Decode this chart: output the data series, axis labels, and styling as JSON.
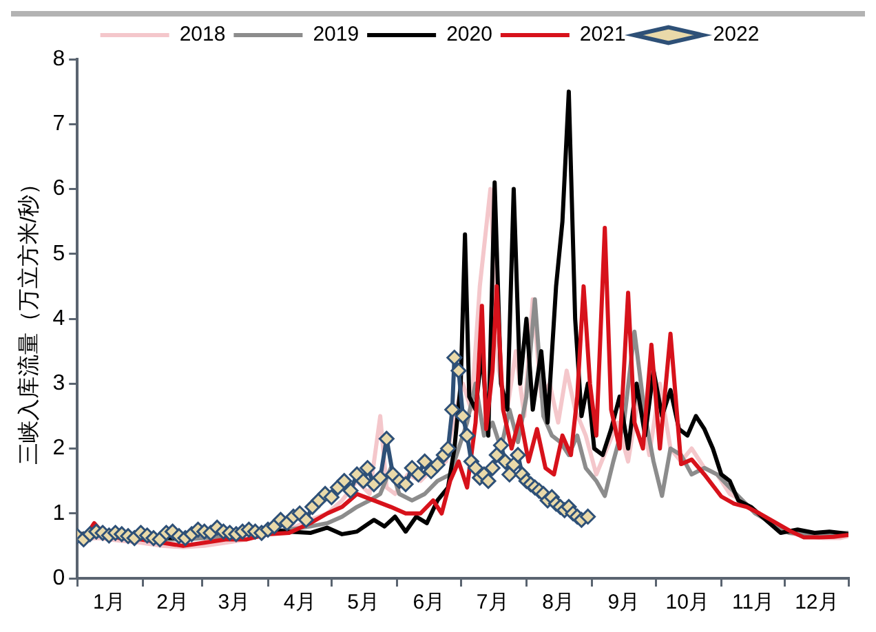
{
  "chart_data": {
    "type": "line",
    "ylabel": "三峡入库流量（万立方米/秒）",
    "xlim": [
      "--01-01",
      "--12-31"
    ],
    "ylim": [
      0,
      8
    ],
    "yticks": [
      0,
      1,
      2,
      3,
      4,
      5,
      6,
      7,
      8
    ],
    "xticks": [
      {
        "value": "--01-01",
        "label": null
      },
      {
        "value": "--01-16",
        "label": "1月"
      },
      {
        "value": "--02-01",
        "label": null
      },
      {
        "value": "--02-15",
        "label": "2月"
      },
      {
        "value": "--03-01",
        "label": null
      },
      {
        "value": "--03-16",
        "label": "3月"
      },
      {
        "value": "--04-01",
        "label": null
      },
      {
        "value": "--04-16",
        "label": "4月"
      },
      {
        "value": "--05-01",
        "label": null
      },
      {
        "value": "--05-16",
        "label": "5月"
      },
      {
        "value": "--06-01",
        "label": null
      },
      {
        "value": "--06-16",
        "label": "6月"
      },
      {
        "value": "--07-01",
        "label": null
      },
      {
        "value": "--07-16",
        "label": "7月"
      },
      {
        "value": "--08-01",
        "label": null
      },
      {
        "value": "--08-16",
        "label": "8月"
      },
      {
        "value": "--09-01",
        "label": null
      },
      {
        "value": "--09-16",
        "label": "9月"
      },
      {
        "value": "--10-01",
        "label": null
      },
      {
        "value": "--10-16",
        "label": "10月"
      },
      {
        "value": "--11-01",
        "label": null
      },
      {
        "value": "--11-16",
        "label": "11月"
      },
      {
        "value": "--12-01",
        "label": null
      },
      {
        "value": "--12-16",
        "label": "12月"
      },
      {
        "value": "--12-31",
        "label": null
      }
    ],
    "grid": false,
    "legend": "top",
    "marker": "none",
    "line_style": "solid",
    "series": [
      {
        "name": "2018",
        "color": "#f4c7cb",
        "x": [
          "--01-01",
          "--01-11",
          "--01-21",
          "--01-31",
          "--02-10",
          "--02-20",
          "--03-02",
          "--03-12",
          "--03-22",
          "--04-01",
          "--04-11",
          "--04-21",
          "--04-29",
          "--05-06",
          "--05-13",
          "--05-19",
          "--05-24",
          "--05-27",
          "--05-31",
          "--06-06",
          "--06-12",
          "--06-18",
          "--06-24",
          "--06-28",
          "--07-02",
          "--07-06",
          "--07-10",
          "--07-15",
          "--07-19",
          "--07-23",
          "--07-27",
          "--07-31",
          "--08-04",
          "--08-08",
          "--08-12",
          "--08-16",
          "--08-20",
          "--08-24",
          "--08-29",
          "--09-03",
          "--09-08",
          "--09-13",
          "--09-18",
          "--09-23",
          "--09-28",
          "--10-03",
          "--10-08",
          "--10-13",
          "--10-18",
          "--10-24",
          "--10-30",
          "--11-05",
          "--11-11",
          "--11-17",
          "--11-25",
          "--12-03",
          "--12-11",
          "--12-19",
          "--12-27",
          "--12-31"
        ],
        "values": [
          0.6,
          0.62,
          0.58,
          0.55,
          0.5,
          0.48,
          0.5,
          0.55,
          0.6,
          0.7,
          0.75,
          0.9,
          1.0,
          1.2,
          1.5,
          1.3,
          2.5,
          1.4,
          1.3,
          1.6,
          1.5,
          1.7,
          1.8,
          2.5,
          3.0,
          2.6,
          4.5,
          6.0,
          3.2,
          2.6,
          3.5,
          2.5,
          4.3,
          2.8,
          3.0,
          2.4,
          3.2,
          2.6,
          2.2,
          1.6,
          2.0,
          2.4,
          1.8,
          2.8,
          1.9,
          3.0,
          2.0,
          1.8,
          2.0,
          1.7,
          1.6,
          1.3,
          1.2,
          1.0,
          0.85,
          0.7,
          0.65,
          0.62,
          0.62,
          0.65
        ]
      },
      {
        "name": "2019",
        "color": "#8c8c8c",
        "x": [
          "--01-01",
          "--01-11",
          "--01-21",
          "--01-31",
          "--02-10",
          "--02-20",
          "--03-02",
          "--03-12",
          "--03-22",
          "--04-01",
          "--04-11",
          "--04-21",
          "--04-29",
          "--05-06",
          "--05-13",
          "--05-19",
          "--05-24",
          "--05-29",
          "--06-02",
          "--06-08",
          "--06-14",
          "--06-20",
          "--06-26",
          "--06-30",
          "--07-04",
          "--07-08",
          "--07-12",
          "--07-16",
          "--07-20",
          "--07-24",
          "--07-28",
          "--08-01",
          "--08-05",
          "--08-09",
          "--08-13",
          "--08-17",
          "--08-21",
          "--08-25",
          "--08-29",
          "--09-03",
          "--09-07",
          "--09-11",
          "--09-16",
          "--09-21",
          "--09-26",
          "--09-30",
          "--10-04",
          "--10-08",
          "--10-13",
          "--10-18",
          "--10-24",
          "--10-30",
          "--11-05",
          "--11-11",
          "--11-17",
          "--11-25",
          "--12-03",
          "--12-11",
          "--12-19",
          "--12-27",
          "--12-31"
        ],
        "values": [
          0.65,
          0.66,
          0.64,
          0.62,
          0.6,
          0.6,
          0.62,
          0.65,
          0.68,
          0.72,
          0.75,
          0.8,
          0.85,
          0.95,
          1.1,
          1.2,
          1.3,
          1.7,
          1.3,
          1.2,
          1.3,
          1.5,
          1.6,
          2.0,
          2.4,
          3.0,
          2.2,
          2.4,
          2.0,
          2.6,
          2.1,
          2.8,
          4.3,
          2.5,
          2.2,
          2.1,
          1.9,
          2.2,
          1.7,
          1.5,
          1.27,
          1.8,
          2.4,
          3.8,
          2.5,
          1.8,
          1.27,
          2.0,
          1.9,
          1.6,
          1.7,
          1.6,
          1.4,
          1.2,
          1.0,
          0.85,
          0.7,
          0.68,
          0.68,
          0.7,
          0.7
        ]
      },
      {
        "name": "2020",
        "color": "#000000",
        "x": [
          "--01-01",
          "--01-11",
          "--01-21",
          "--01-31",
          "--02-15",
          "--03-02",
          "--03-17",
          "--04-01",
          "--04-11",
          "--04-21",
          "--04-29",
          "--05-06",
          "--05-13",
          "--05-21",
          "--05-26",
          "--05-31",
          "--06-05",
          "--06-10",
          "--06-15",
          "--06-20",
          "--06-25",
          "--06-28",
          "--07-01",
          "--07-03",
          "--07-05",
          "--07-08",
          "--07-11",
          "--07-14",
          "--07-17",
          "--07-20",
          "--07-23",
          "--07-26",
          "--07-29",
          "--08-01",
          "--08-04",
          "--08-08",
          "--08-11",
          "--08-15",
          "--08-18",
          "--08-21",
          "--08-24",
          "--08-27",
          "--08-30",
          "--09-02",
          "--09-06",
          "--09-10",
          "--09-14",
          "--09-18",
          "--09-22",
          "--09-26",
          "--09-30",
          "--10-04",
          "--10-08",
          "--10-12",
          "--10-16",
          "--10-20",
          "--10-24",
          "--10-28",
          "--11-01",
          "--11-05",
          "--11-09",
          "--11-15",
          "--11-22",
          "--11-29",
          "--12-07",
          "--12-15",
          "--12-22",
          "--12-27",
          "--12-31"
        ],
        "values": [
          0.68,
          0.7,
          0.68,
          0.65,
          0.62,
          0.7,
          0.72,
          0.75,
          0.72,
          0.7,
          0.78,
          0.68,
          0.72,
          0.9,
          0.8,
          0.95,
          0.72,
          0.95,
          0.85,
          1.2,
          1.4,
          2.0,
          3.0,
          5.3,
          2.8,
          2.6,
          3.5,
          2.2,
          6.1,
          3.0,
          2.6,
          6.0,
          3.0,
          4.0,
          2.6,
          3.5,
          2.4,
          4.5,
          5.5,
          7.5,
          4.0,
          2.5,
          3.0,
          2.0,
          1.9,
          2.3,
          2.8,
          2.0,
          3.0,
          2.2,
          3.2,
          2.5,
          2.9,
          2.3,
          2.2,
          2.5,
          2.3,
          2.0,
          1.6,
          1.5,
          1.2,
          1.1,
          0.9,
          0.7,
          0.75,
          0.7,
          0.72,
          0.7,
          0.68
        ]
      },
      {
        "name": "2021",
        "color": "#d7121b",
        "x": [
          "--01-01",
          "--01-06",
          "--01-09",
          "--01-13",
          "--01-21",
          "--01-31",
          "--02-10",
          "--02-20",
          "--03-02",
          "--03-12",
          "--03-22",
          "--04-01",
          "--04-11",
          "--04-21",
          "--04-29",
          "--05-06",
          "--05-13",
          "--05-21",
          "--05-29",
          "--06-05",
          "--06-12",
          "--06-18",
          "--06-22",
          "--06-26",
          "--06-30",
          "--07-04",
          "--07-08",
          "--07-11",
          "--07-13",
          "--07-16",
          "--07-18",
          "--07-21",
          "--07-25",
          "--07-29",
          "--08-02",
          "--08-06",
          "--08-10",
          "--08-14",
          "--08-18",
          "--08-22",
          "--08-25",
          "--08-28",
          "--08-31",
          "--09-03",
          "--09-07",
          "--09-10",
          "--09-14",
          "--09-18",
          "--09-21",
          "--09-25",
          "--09-29",
          "--10-03",
          "--10-08",
          "--10-13",
          "--10-18",
          "--10-24",
          "--11-01",
          "--11-07",
          "--11-13",
          "--11-19",
          "--11-27",
          "--12-04",
          "--12-10",
          "--12-17",
          "--12-24",
          "--12-31"
        ],
        "values": [
          0.65,
          0.7,
          0.85,
          0.7,
          0.62,
          0.6,
          0.55,
          0.5,
          0.55,
          0.6,
          0.6,
          0.68,
          0.7,
          0.85,
          1.0,
          1.1,
          1.3,
          1.2,
          1.1,
          1.0,
          1.0,
          1.2,
          1.0,
          1.5,
          1.8,
          1.4,
          2.4,
          4.2,
          2.3,
          3.2,
          4.5,
          2.6,
          2.0,
          2.5,
          1.8,
          2.3,
          1.7,
          1.6,
          2.2,
          1.9,
          2.8,
          4.5,
          3.0,
          2.2,
          5.4,
          2.6,
          2.0,
          4.4,
          2.4,
          2.0,
          3.6,
          2.0,
          3.77,
          1.76,
          1.83,
          1.6,
          1.26,
          1.15,
          1.1,
          1.0,
          0.85,
          0.72,
          0.63,
          0.63,
          0.64,
          0.67
        ]
      },
      {
        "name": "2022",
        "color": "#2e5077",
        "marker": "diamond",
        "x": [
          "--01-01",
          "--01-04",
          "--01-07",
          "--01-10",
          "--01-13",
          "--01-16",
          "--01-19",
          "--01-22",
          "--01-25",
          "--01-28",
          "--01-31",
          "--02-03",
          "--02-06",
          "--02-09",
          "--02-12",
          "--02-15",
          "--02-18",
          "--02-21",
          "--02-24",
          "--02-27",
          "--03-02",
          "--03-05",
          "--03-08",
          "--03-11",
          "--03-14",
          "--03-17",
          "--03-20",
          "--03-23",
          "--03-26",
          "--03-29",
          "--04-01",
          "--04-04",
          "--04-07",
          "--04-10",
          "--04-13",
          "--04-16",
          "--04-19",
          "--04-22",
          "--04-25",
          "--04-28",
          "--05-01",
          "--05-04",
          "--05-07",
          "--05-10",
          "--05-13",
          "--05-16",
          "--05-18",
          "--05-21",
          "--05-24",
          "--05-27",
          "--05-30",
          "--06-02",
          "--06-05",
          "--06-08",
          "--06-11",
          "--06-14",
          "--06-17",
          "--06-20",
          "--06-23",
          "--06-25",
          "--06-27",
          "--06-28",
          "--06-30",
          "--07-02",
          "--07-04",
          "--07-06",
          "--07-08",
          "--07-10",
          "--07-12",
          "--07-14",
          "--07-16",
          "--07-18",
          "--07-20",
          "--07-22",
          "--07-24",
          "--07-26",
          "--07-28",
          "--07-30",
          "--08-01",
          "--08-03",
          "--08-05",
          "--08-07",
          "--08-09",
          "--08-11",
          "--08-13",
          "--08-15",
          "--08-17",
          "--08-19",
          "--08-21",
          "--08-23",
          "--08-25",
          "--08-27",
          "--08-30"
        ],
        "values": [
          0.65,
          0.6,
          0.68,
          0.72,
          0.7,
          0.66,
          0.7,
          0.68,
          0.65,
          0.62,
          0.7,
          0.66,
          0.62,
          0.6,
          0.7,
          0.72,
          0.65,
          0.62,
          0.68,
          0.75,
          0.72,
          0.7,
          0.78,
          0.72,
          0.7,
          0.68,
          0.72,
          0.75,
          0.72,
          0.7,
          0.75,
          0.8,
          0.9,
          0.85,
          0.95,
          1.0,
          0.9,
          1.1,
          1.2,
          1.3,
          1.25,
          1.4,
          1.5,
          1.35,
          1.6,
          1.5,
          1.7,
          1.45,
          1.55,
          2.15,
          1.6,
          1.5,
          1.45,
          1.7,
          1.6,
          1.8,
          1.65,
          1.75,
          1.9,
          2.0,
          2.6,
          3.4,
          3.2,
          2.5,
          2.2,
          1.8,
          1.7,
          1.55,
          1.6,
          1.5,
          1.7,
          1.9,
          2.05,
          1.8,
          1.6,
          1.75,
          1.9,
          1.6,
          1.5,
          1.45,
          1.4,
          1.35,
          1.3,
          1.2,
          1.25,
          1.15,
          1.1,
          1.05,
          1.1,
          1.0,
          0.95,
          0.9,
          0.95
        ]
      }
    ]
  }
}
